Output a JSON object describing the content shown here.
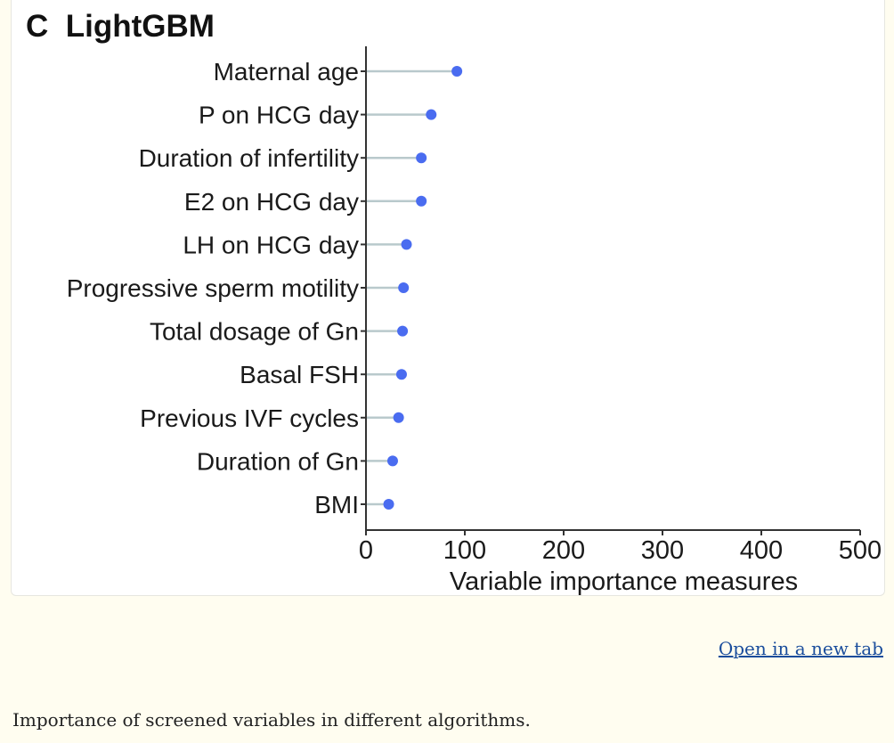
{
  "figure": {
    "panel_title": "C  LightGBM",
    "open_link_label": "Open in a new tab",
    "caption": "Importance of screened variables in different algorithms."
  },
  "chart_data": {
    "type": "lollipop",
    "title": "LightGBM",
    "panel_letter": "C",
    "xlabel": "Variable importance measures",
    "ylabel": "",
    "xlim": [
      0,
      500
    ],
    "xticks": [
      0,
      100,
      200,
      300,
      400,
      500
    ],
    "grid": false,
    "legend": "none",
    "colors": {
      "point": "#4a6cf0",
      "stem": "#b9c9cc",
      "axis": "#333333"
    },
    "categories": [
      "Maternal age",
      "P on HCG day",
      "Duration of infertility",
      "E2 on HCG day",
      "LH on HCG day",
      "Progressive sperm motility",
      "Total dosage of Gn",
      "Basal FSH",
      "Previous IVF cycles",
      "Duration of Gn",
      "BMI"
    ],
    "values": [
      92,
      66,
      56,
      56,
      41,
      38,
      37,
      36,
      33,
      27,
      23
    ]
  }
}
